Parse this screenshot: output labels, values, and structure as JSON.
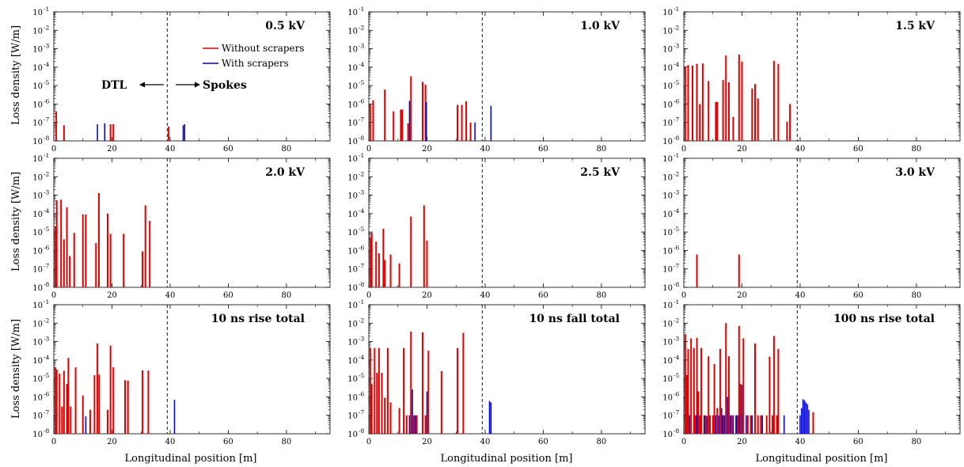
{
  "chart_data": {
    "type": "bar",
    "xlabel": "Longitudinal position [m]",
    "ylabel": "Loss density [W/m]",
    "xlim": [
      0,
      95
    ],
    "ylim": [
      1e-08,
      0.1
    ],
    "yscale": "log",
    "x_ticks": [
      0,
      20,
      40,
      60,
      80
    ],
    "y_ticks": [
      {
        "base": "10",
        "exp": "-1"
      },
      {
        "base": "10",
        "exp": "-2"
      },
      {
        "base": "10",
        "exp": "-3"
      },
      {
        "base": "10",
        "exp": "-4"
      },
      {
        "base": "10",
        "exp": "-5"
      },
      {
        "base": "10",
        "exp": "-6"
      },
      {
        "base": "10",
        "exp": "-7"
      },
      {
        "base": "10",
        "exp": "-8"
      }
    ],
    "boundary_x": 39,
    "legend": {
      "placement": "inside top of first panel",
      "entries": [
        {
          "label": "Without scrapers",
          "color": "#e00000"
        },
        {
          "label": "With scrapers",
          "color": "#0000cc"
        }
      ]
    },
    "annotations": {
      "left": "DTL",
      "right": "Spokes"
    },
    "panels": [
      {
        "title": "0.5 kV",
        "red": [
          [
            0.8,
            4e-07
          ],
          [
            3.5,
            7e-08
          ],
          [
            19.5,
            8e-08
          ],
          [
            20.5,
            8e-08
          ],
          [
            39.5,
            6e-08
          ]
        ],
        "blue": [
          [
            15.0,
            8e-08
          ],
          [
            17.5,
            9e-08
          ],
          [
            44.5,
            7e-08
          ],
          [
            45.0,
            8e-08
          ]
        ]
      },
      {
        "title": "1.0 kV",
        "red": [
          [
            0.5,
            9e-07
          ],
          [
            1.5,
            1.6e-06
          ],
          [
            5.5,
            6e-06
          ],
          [
            8.5,
            4e-07
          ],
          [
            11.0,
            5e-07
          ],
          [
            11.5,
            5e-07
          ],
          [
            13.5,
            9e-08
          ],
          [
            14.5,
            3.2e-05
          ],
          [
            18.5,
            1.6e-05
          ],
          [
            19.5,
            1.1e-05
          ],
          [
            30.5,
            9e-07
          ],
          [
            32.0,
            9e-07
          ],
          [
            33.5,
            1.4e-06
          ],
          [
            35.0,
            1e-07
          ]
        ],
        "blue": [
          [
            14.0,
            1.5e-06
          ],
          [
            19.8,
            1.3e-06
          ],
          [
            36.5,
            1e-07
          ],
          [
            42.0,
            8e-07
          ]
        ]
      },
      {
        "title": "1.5 kV",
        "red": [
          [
            0.5,
            0.00011
          ],
          [
            1.5,
            0.00013
          ],
          [
            3.0,
            0.00012
          ],
          [
            4.5,
            0.00015
          ],
          [
            5.5,
            1e-06
          ],
          [
            6.5,
            0.00016
          ],
          [
            8.5,
            1.8e-05
          ],
          [
            11.0,
            1.3e-06
          ],
          [
            11.5,
            1.3e-06
          ],
          [
            13.5,
            2e-05
          ],
          [
            14.5,
            0.00043
          ],
          [
            15.5,
            1.5e-05
          ],
          [
            17.0,
            2e-07
          ],
          [
            19.0,
            0.00048
          ],
          [
            20.0,
            0.0002
          ],
          [
            23.5,
            7e-06
          ],
          [
            24.5,
            1.2e-05
          ],
          [
            25.5,
            2e-06
          ],
          [
            31.0,
            0.00022
          ],
          [
            32.5,
            0.00015
          ],
          [
            35.5,
            1.1e-07
          ],
          [
            36.5,
            1e-06
          ]
        ],
        "blue": []
      },
      {
        "title": "2.0 kV",
        "red": [
          [
            0.5,
            2e-05
          ],
          [
            1.0,
            0.00053
          ],
          [
            2.5,
            0.00057
          ],
          [
            3.5,
            4e-06
          ],
          [
            4.5,
            0.00022
          ],
          [
            5.5,
            5e-07
          ],
          [
            7.0,
            9e-06
          ],
          [
            10.0,
            9e-05
          ],
          [
            11.0,
            9e-05
          ],
          [
            14.5,
            2.5e-06
          ],
          [
            15.5,
            0.0013
          ],
          [
            18.5,
            0.0001
          ],
          [
            19.5,
            8e-06
          ],
          [
            24.0,
            8e-06
          ],
          [
            30.5,
            9e-07
          ],
          [
            31.5,
            0.00028
          ],
          [
            33.0,
            4e-05
          ]
        ],
        "blue": []
      },
      {
        "title": "2.5 kV",
        "red": [
          [
            0.5,
            5e-06
          ],
          [
            1.0,
            9e-06
          ],
          [
            2.5,
            3e-06
          ],
          [
            3.5,
            7e-07
          ],
          [
            5.0,
            1.5e-05
          ],
          [
            5.5,
            3e-07
          ],
          [
            7.5,
            6e-07
          ],
          [
            10.5,
            2e-07
          ],
          [
            14.5,
            7e-05
          ],
          [
            19.0,
            0.00028
          ],
          [
            20.0,
            3.5e-06
          ]
        ],
        "blue": []
      },
      {
        "title": "3.0 kV",
        "red": [
          [
            4.5,
            6e-07
          ],
          [
            19.0,
            6e-07
          ]
        ],
        "blue": []
      },
      {
        "title": "10 ns rise total",
        "red": [
          [
            0.5,
            4e-05
          ],
          [
            1.0,
            3e-05
          ],
          [
            2.0,
            1.8e-05
          ],
          [
            2.8,
            3e-07
          ],
          [
            3.5,
            2.6e-05
          ],
          [
            4.5,
            5e-06
          ],
          [
            5.0,
            0.00013
          ],
          [
            5.8,
            3e-07
          ],
          [
            7.5,
            4e-05
          ],
          [
            10.0,
            1.2e-06
          ],
          [
            12.5,
            2e-07
          ],
          [
            14.0,
            1.5e-05
          ],
          [
            15.0,
            0.0008
          ],
          [
            15.6,
            1.6e-05
          ],
          [
            18.5,
            2e-07
          ],
          [
            19.5,
            0.0006
          ],
          [
            20.5,
            4e-05
          ],
          [
            24.5,
            8e-06
          ],
          [
            25.5,
            7.5e-06
          ],
          [
            30.5,
            2.8e-05
          ],
          [
            32.5,
            2.7e-05
          ]
        ],
        "blue": [
          [
            11.0,
            9e-08
          ],
          [
            41.5,
            7e-07
          ]
        ]
      },
      {
        "title": "10 ns fall total",
        "red": [
          [
            0.5,
            0.00045
          ],
          [
            1.0,
            5e-06
          ],
          [
            2.0,
            0.00045
          ],
          [
            2.8,
            2e-05
          ],
          [
            3.5,
            0.00045
          ],
          [
            4.5,
            2e-05
          ],
          [
            5.5,
            9e-07
          ],
          [
            6.5,
            0.00045
          ],
          [
            7.5,
            5e-07
          ],
          [
            10.5,
            2.5e-07
          ],
          [
            12.0,
            0.00045
          ],
          [
            13.0,
            1e-07
          ],
          [
            14.5,
            0.0035
          ],
          [
            15.5,
            1e-07
          ],
          [
            16.5,
            1e-07
          ],
          [
            18.5,
            0.0032
          ],
          [
            19.5,
            1e-07
          ],
          [
            20.5,
            0.00032
          ],
          [
            25.0,
            2.5e-05
          ],
          [
            30.5,
            0.00045
          ],
          [
            32.5,
            0.003
          ]
        ],
        "blue": [
          [
            14.0,
            1e-07
          ],
          [
            15.0,
            2.5e-06
          ],
          [
            16.0,
            1e-07
          ],
          [
            20.0,
            2e-06
          ],
          [
            41.5,
            6e-07
          ],
          [
            42.0,
            5e-07
          ]
        ]
      },
      {
        "title": "100 ns rise total",
        "red": [
          [
            0.5,
            0.0025
          ],
          [
            1.0,
            1.5e-05
          ],
          [
            1.5,
            0.0004
          ],
          [
            2.5,
            0.0015
          ],
          [
            3.5,
            0.00045
          ],
          [
            4.0,
            1e-07
          ],
          [
            4.5,
            0.0016
          ],
          [
            5.0,
            2e-06
          ],
          [
            5.5,
            1e-07
          ],
          [
            6.0,
            0.00045
          ],
          [
            7.5,
            1e-07
          ],
          [
            8.5,
            0.00016
          ],
          [
            9.0,
            1e-07
          ],
          [
            10.0,
            1e-07
          ],
          [
            10.5,
            6e-05
          ],
          [
            11.5,
            2.5e-07
          ],
          [
            12.5,
            0.0004
          ],
          [
            13.5,
            1e-07
          ],
          [
            14.5,
            0.01
          ],
          [
            15.5,
            0.00016
          ],
          [
            16.5,
            1e-07
          ],
          [
            18.0,
            1e-07
          ],
          [
            18.5,
            1e-07
          ],
          [
            19.0,
            0.007
          ],
          [
            19.5,
            5e-06
          ],
          [
            20.5,
            0.0015
          ],
          [
            22.0,
            1e-07
          ],
          [
            23.0,
            1e-07
          ],
          [
            24.5,
            0.0008
          ],
          [
            25.5,
            1e-07
          ],
          [
            26.5,
            1e-07
          ],
          [
            28.5,
            1e-07
          ],
          [
            29.5,
            0.00015
          ],
          [
            30.5,
            1e-07
          ],
          [
            31.0,
            0.002
          ],
          [
            32.0,
            1e-07
          ],
          [
            32.5,
            0.0004
          ],
          [
            44.5,
            1.5e-07
          ]
        ],
        "blue": [
          [
            2.0,
            1e-07
          ],
          [
            4.5,
            1e-07
          ],
          [
            7.0,
            1e-07
          ],
          [
            8.0,
            9e-08
          ],
          [
            11.0,
            1e-07
          ],
          [
            12.0,
            1e-07
          ],
          [
            13.0,
            2.5e-07
          ],
          [
            13.5,
            1e-07
          ],
          [
            14.0,
            1e-07
          ],
          [
            15.0,
            1e-06
          ],
          [
            16.0,
            1e-07
          ],
          [
            17.0,
            1e-07
          ],
          [
            18.0,
            1e-07
          ],
          [
            19.0,
            1e-07
          ],
          [
            20.0,
            4.5e-06
          ],
          [
            21.5,
            1e-07
          ],
          [
            23.5,
            1e-07
          ],
          [
            27.0,
            1e-07
          ],
          [
            34.5,
            1e-07
          ],
          [
            40.0,
            1e-07
          ],
          [
            40.5,
            2.5e-07
          ],
          [
            41.0,
            7.5e-07
          ],
          [
            41.5,
            6.5e-07
          ],
          [
            42.0,
            5e-07
          ],
          [
            42.5,
            4e-07
          ],
          [
            43.0,
            2e-07
          ]
        ]
      }
    ]
  }
}
